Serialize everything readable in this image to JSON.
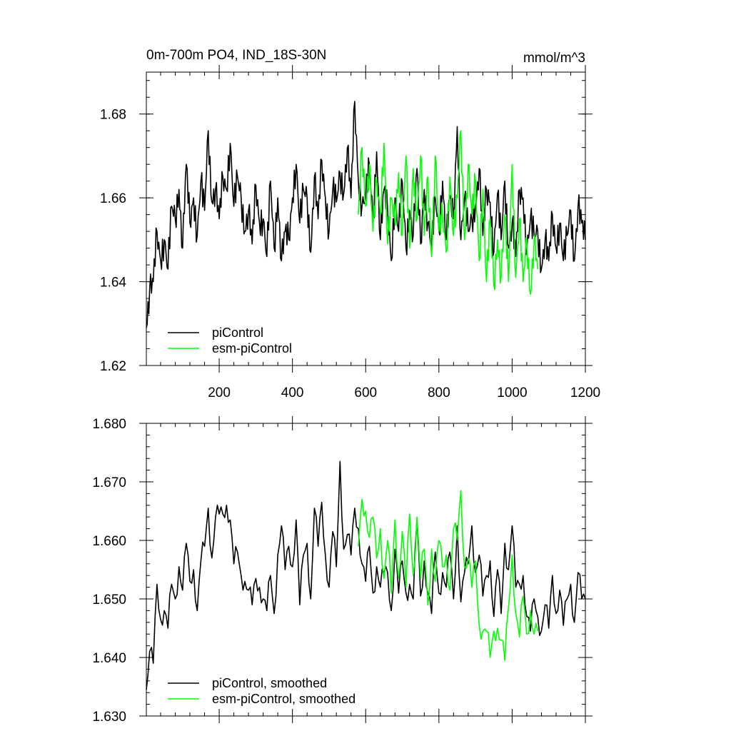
{
  "chart_data": [
    {
      "type": "line",
      "title": "0m-700m PO4, IND_18S-30N",
      "units": "mmol/m^3",
      "xlabel": "",
      "ylabel": "",
      "xlim": [
        1,
        1200
      ],
      "ylim": [
        1.62,
        1.69
      ],
      "yticks": [
        1.62,
        1.64,
        1.66,
        1.68
      ],
      "ytick_labels": [
        "1.62",
        "1.64",
        "1.66",
        "1.68"
      ],
      "xticks": [
        200,
        400,
        600,
        800,
        1000,
        1200
      ],
      "xtick_labels": [
        "200",
        "400",
        "600",
        "800",
        "1000",
        "1200"
      ],
      "legend_position": "bottom-left",
      "grid": false,
      "series": [
        {
          "name": "piControl",
          "color": "#000000",
          "x": [
            1,
            10,
            20,
            30,
            40,
            50,
            60,
            70,
            80,
            90,
            100,
            110,
            120,
            130,
            140,
            150,
            160,
            170,
            180,
            190,
            200,
            210,
            220,
            230,
            240,
            250,
            260,
            270,
            280,
            290,
            300,
            310,
            320,
            330,
            340,
            350,
            360,
            370,
            380,
            390,
            400,
            410,
            420,
            430,
            440,
            450,
            460,
            470,
            480,
            490,
            500,
            510,
            520,
            530,
            540,
            550,
            560,
            570,
            580,
            590,
            600,
            610,
            620,
            630,
            640,
            650,
            660,
            670,
            680,
            690,
            700,
            710,
            720,
            730,
            740,
            750,
            760,
            770,
            780,
            790,
            800,
            810,
            820,
            830,
            840,
            850,
            860,
            870,
            880,
            890,
            900,
            910,
            920,
            930,
            940,
            950,
            960,
            970,
            980,
            990,
            1000,
            1010,
            1020,
            1030,
            1040,
            1050,
            1060,
            1070,
            1080,
            1090,
            1100,
            1110,
            1120,
            1130,
            1140,
            1150,
            1160,
            1170,
            1180,
            1190,
            1200
          ],
          "y": [
            1.629,
            1.638,
            1.64,
            1.652,
            1.645,
            1.65,
            1.643,
            1.658,
            1.655,
            1.662,
            1.648,
            1.668,
            1.654,
            1.66,
            1.651,
            1.664,
            1.657,
            1.676,
            1.659,
            1.662,
            1.655,
            1.665,
            1.662,
            1.673,
            1.658,
            1.665,
            1.66,
            1.652,
            1.657,
            1.649,
            1.663,
            1.654,
            1.655,
            1.646,
            1.664,
            1.648,
            1.66,
            1.645,
            1.652,
            1.65,
            1.66,
            1.668,
            1.654,
            1.662,
            1.66,
            1.647,
            1.665,
            1.655,
            1.669,
            1.66,
            1.652,
            1.662,
            1.659,
            1.666,
            1.661,
            1.672,
            1.66,
            1.683,
            1.664,
            1.658,
            1.66,
            1.668,
            1.655,
            1.671,
            1.65,
            1.662,
            1.657,
            1.645,
            1.66,
            1.652,
            1.664,
            1.648,
            1.657,
            1.651,
            1.667,
            1.649,
            1.662,
            1.654,
            1.648,
            1.66,
            1.652,
            1.664,
            1.65,
            1.66,
            1.655,
            1.677,
            1.65,
            1.66,
            1.652,
            1.655,
            1.658,
            1.667,
            1.651,
            1.662,
            1.659,
            1.647,
            1.661,
            1.65,
            1.664,
            1.648,
            1.654,
            1.646,
            1.662,
            1.66,
            1.647,
            1.655,
            1.651,
            1.652,
            1.643,
            1.65,
            1.645,
            1.656,
            1.648,
            1.654,
            1.645,
            1.651,
            1.657,
            1.645,
            1.658,
            1.654,
            1.65
          ]
        },
        {
          "name": "esm-piControl",
          "color": "#00ff00",
          "x": [
            580,
            590,
            600,
            610,
            620,
            630,
            640,
            650,
            660,
            670,
            680,
            690,
            700,
            710,
            720,
            730,
            740,
            750,
            760,
            770,
            780,
            790,
            800,
            810,
            820,
            830,
            840,
            850,
            860,
            870,
            880,
            890,
            900,
            910,
            920,
            930,
            940,
            950,
            960,
            970,
            980,
            990,
            1000,
            1010,
            1020,
            1030,
            1040,
            1050,
            1060,
            1070
          ],
          "y": [
            1.656,
            1.672,
            1.658,
            1.668,
            1.652,
            1.664,
            1.656,
            1.673,
            1.649,
            1.66,
            1.654,
            1.666,
            1.651,
            1.67,
            1.648,
            1.667,
            1.655,
            1.67,
            1.651,
            1.665,
            1.646,
            1.67,
            1.652,
            1.656,
            1.647,
            1.665,
            1.651,
            1.66,
            1.676,
            1.65,
            1.668,
            1.656,
            1.664,
            1.645,
            1.662,
            1.64,
            1.655,
            1.639,
            1.65,
            1.641,
            1.656,
            1.64,
            1.668,
            1.641,
            1.655,
            1.64,
            1.65,
            1.637,
            1.65,
            1.643
          ]
        }
      ]
    },
    {
      "type": "line",
      "title": "",
      "xlabel": "",
      "ylabel": "",
      "xlim": [
        1,
        1200
      ],
      "ylim": [
        1.63,
        1.68
      ],
      "yticks": [
        1.63,
        1.64,
        1.65,
        1.66,
        1.67,
        1.68
      ],
      "ytick_labels": [
        "1.630",
        "1.640",
        "1.650",
        "1.660",
        "1.670",
        "1.680"
      ],
      "legend_position": "bottom-left",
      "grid": false,
      "series": [
        {
          "name": "piControl, smoothed",
          "color": "#000000",
          "x": [
            1,
            10,
            20,
            30,
            40,
            50,
            60,
            70,
            80,
            90,
            100,
            110,
            120,
            130,
            140,
            150,
            160,
            170,
            180,
            190,
            200,
            210,
            220,
            230,
            240,
            250,
            260,
            270,
            280,
            290,
            300,
            310,
            320,
            330,
            340,
            350,
            360,
            370,
            380,
            390,
            400,
            410,
            420,
            430,
            440,
            450,
            460,
            470,
            480,
            490,
            500,
            510,
            520,
            530,
            540,
            550,
            560,
            570,
            580,
            590,
            600,
            610,
            620,
            630,
            640,
            650,
            660,
            670,
            680,
            690,
            700,
            710,
            720,
            730,
            740,
            750,
            760,
            770,
            780,
            790,
            800,
            810,
            820,
            830,
            840,
            850,
            860,
            870,
            880,
            890,
            900,
            910,
            920,
            930,
            940,
            950,
            960,
            970,
            980,
            990,
            1000,
            1010,
            1020,
            1030,
            1040,
            1050,
            1060,
            1070,
            1080,
            1090,
            1100,
            1110,
            1120,
            1130,
            1140,
            1150,
            1160,
            1170,
            1180,
            1190,
            1200
          ],
          "y": [
            1.6345,
            1.641,
            1.639,
            1.6525,
            1.6465,
            1.648,
            1.645,
            1.6525,
            1.65,
            1.6555,
            1.6515,
            1.6595,
            1.653,
            1.655,
            1.648,
            1.6565,
            1.659,
            1.6655,
            1.657,
            1.664,
            1.6645,
            1.6645,
            1.666,
            1.6635,
            1.656,
            1.658,
            1.654,
            1.653,
            1.6515,
            1.649,
            1.6535,
            1.652,
            1.65,
            1.648,
            1.654,
            1.6475,
            1.6575,
            1.6625,
            1.655,
            1.659,
            1.6555,
            1.6635,
            1.649,
            1.6575,
            1.6595,
            1.65,
            1.6655,
            1.659,
            1.6665,
            1.6575,
            1.652,
            1.6615,
            1.6555,
            1.6735,
            1.6585,
            1.661,
            1.6575,
            1.6655,
            1.662,
            1.656,
            1.653,
            1.659,
            1.651,
            1.6555,
            1.652,
            1.6545,
            1.6545,
            1.648,
            1.6585,
            1.651,
            1.6565,
            1.651,
            1.6525,
            1.65,
            1.6635,
            1.6505,
            1.6565,
            1.651,
            1.6475,
            1.658,
            1.651,
            1.6545,
            1.652,
            1.658,
            1.65,
            1.6625,
            1.6495,
            1.6545,
            1.656,
            1.6625,
            1.6545,
            1.6575,
            1.6505,
            1.654,
            1.6565,
            1.647,
            1.655,
            1.6475,
            1.6595,
            1.655,
            1.6625,
            1.652,
            1.6525,
            1.654,
            1.647,
            1.6445,
            1.65,
            1.647,
            1.6445,
            1.649,
            1.645,
            1.654,
            1.6475,
            1.6515,
            1.6455,
            1.65,
            1.6525,
            1.646,
            1.6545,
            1.65,
            1.65
          ]
        },
        {
          "name": "esm-piControl, smoothed",
          "color": "#00ff00",
          "x": [
            580,
            590,
            600,
            610,
            620,
            630,
            640,
            650,
            660,
            670,
            680,
            690,
            700,
            710,
            720,
            730,
            740,
            750,
            760,
            770,
            780,
            790,
            800,
            810,
            820,
            830,
            840,
            850,
            860,
            870,
            880,
            890,
            900,
            910,
            920,
            930,
            940,
            950,
            960,
            970,
            980,
            990,
            1000,
            1010,
            1020,
            1030,
            1040,
            1050,
            1060,
            1070
          ],
          "y": [
            1.659,
            1.667,
            1.665,
            1.6605,
            1.664,
            1.657,
            1.662,
            1.6535,
            1.66,
            1.651,
            1.6635,
            1.6535,
            1.6615,
            1.652,
            1.6645,
            1.654,
            1.664,
            1.6535,
            1.6585,
            1.649,
            1.6585,
            1.653,
            1.66,
            1.6555,
            1.6575,
            1.6515,
            1.662,
            1.66,
            1.6685,
            1.6555,
            1.657,
            1.652,
            1.6565,
            1.6455,
            1.6445,
            1.6445,
            1.64,
            1.6445,
            1.645,
            1.643,
            1.6395,
            1.6485,
            1.6575,
            1.6475,
            1.6435,
            1.6505,
            1.644,
            1.648,
            1.644,
            1.6445
          ]
        }
      ]
    }
  ]
}
